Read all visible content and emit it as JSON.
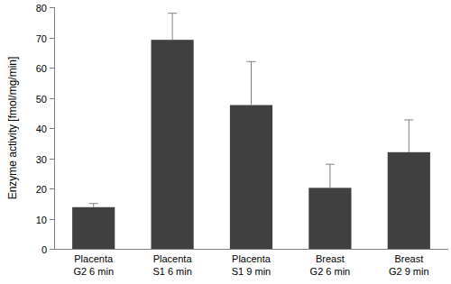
{
  "chart_data": {
    "type": "bar",
    "y_label": "Enzyme activity [fmol/mg/min]",
    "categories": [
      "Placenta\nG2 6 min",
      "Placenta\nS1 6 min",
      "Placenta\nS1 9 min",
      "Breast\nG2 6 min",
      "Breast\nG2 9 min"
    ],
    "values": [
      13.8,
      69.2,
      47.6,
      20.2,
      32.0
    ],
    "errors": [
      1.2,
      8.8,
      14.4,
      7.8,
      10.7
    ],
    "color": "#404040",
    "ylim": [
      0,
      80
    ],
    "yticks": [
      0,
      10,
      20,
      30,
      40,
      50,
      60,
      70,
      80
    ],
    "grid": false
  }
}
